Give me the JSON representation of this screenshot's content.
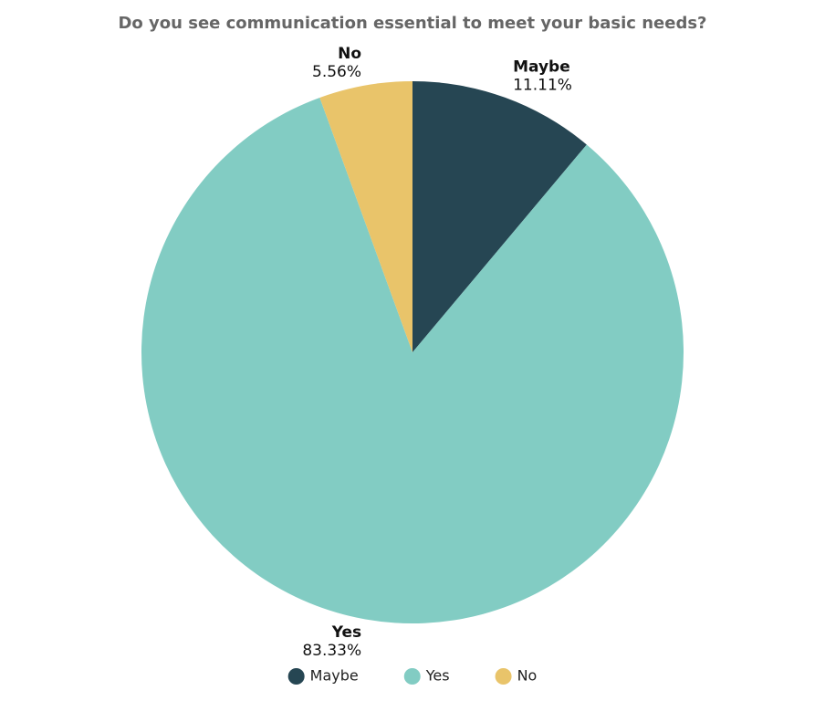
{
  "chart_data": {
    "type": "pie",
    "title": "Do you see communication essential to meet your basic needs?",
    "categories": [
      "Maybe",
      "Yes",
      "No"
    ],
    "values": [
      11.11,
      83.33,
      5.56
    ],
    "value_labels": [
      "11.11%",
      "83.33%",
      "5.56%"
    ],
    "colors": [
      "#264653",
      "#82ccc3",
      "#e9c46a"
    ],
    "legend": "bottom"
  }
}
